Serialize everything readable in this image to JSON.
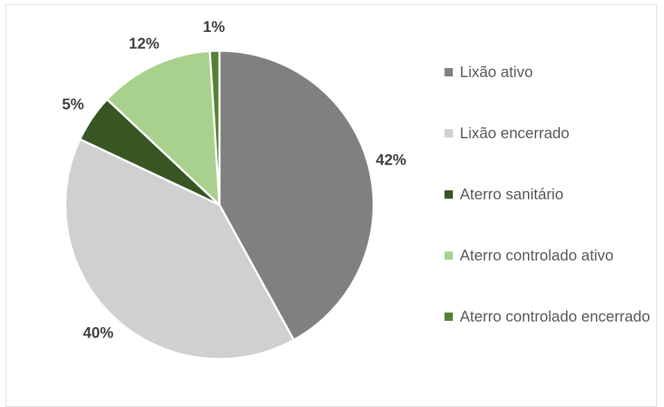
{
  "chart_data": {
    "type": "pie",
    "categories": [
      "Lixão ativo",
      "Lixão encerrado",
      "Aterro sanitário",
      "Aterro controlado ativo",
      "Aterro controlado encerrado"
    ],
    "values": [
      42,
      40,
      5,
      12,
      1
    ],
    "value_labels": [
      "42%",
      "40%",
      "5%",
      "12%",
      "1%"
    ],
    "colors": [
      "#808080",
      "#d0d0d0",
      "#375623",
      "#a9d18e",
      "#548235"
    ],
    "legend": "right"
  }
}
